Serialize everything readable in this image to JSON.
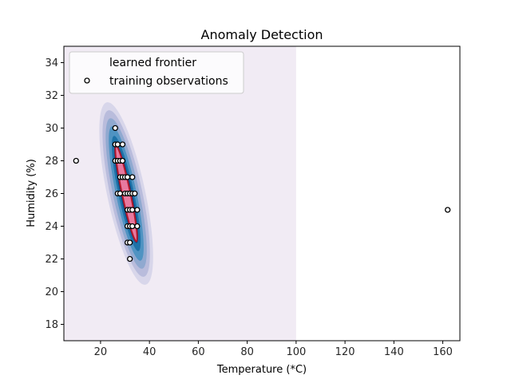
{
  "chart_data": {
    "type": "scatter",
    "title": "Anomaly Detection",
    "xlabel": "Temperature (*C)",
    "ylabel": "Humidity (%)",
    "xlim": [
      5,
      167
    ],
    "ylim": [
      17,
      35
    ],
    "xticks": [
      20,
      40,
      60,
      80,
      100,
      120,
      140,
      160
    ],
    "yticks": [
      18,
      20,
      22,
      24,
      26,
      28,
      30,
      32,
      34
    ],
    "shaded_region_x": [
      5,
      100
    ],
    "legend": {
      "placement": "top-left",
      "entries": [
        "learned frontier",
        "training observations"
      ]
    },
    "decision_function": {
      "center": [
        30.5,
        26
      ],
      "filled_levels": [
        {
          "rx": 7.8,
          "ry": 5.7,
          "color": "#d8d6ea"
        },
        {
          "rx": 6.6,
          "ry": 5.2,
          "color": "#b9bcdc"
        },
        {
          "rx": 5.4,
          "ry": 4.7,
          "color": "#90a9d0"
        },
        {
          "rx": 4.2,
          "ry": 4.2,
          "color": "#4f93c2"
        },
        {
          "rx": 3.2,
          "ry": 3.6,
          "color": "#1e72a8"
        },
        {
          "rx": 2.4,
          "ry": 3.1,
          "color": "#08457e"
        }
      ],
      "frontier": {
        "rx": 1.7,
        "ry": 3.0,
        "color": "#e8799f",
        "edge": "#b2182b"
      }
    },
    "series": [
      {
        "name": "training observations",
        "points": [
          [
            26,
            30
          ],
          [
            26,
            29
          ],
          [
            27,
            29
          ],
          [
            29,
            29
          ],
          [
            26,
            28
          ],
          [
            27,
            28
          ],
          [
            28,
            28
          ],
          [
            29,
            28
          ],
          [
            28,
            27
          ],
          [
            29,
            27
          ],
          [
            30,
            27
          ],
          [
            31,
            27
          ],
          [
            33,
            27
          ],
          [
            27,
            26
          ],
          [
            28,
            26
          ],
          [
            30,
            26
          ],
          [
            31,
            26
          ],
          [
            32,
            26
          ],
          [
            33,
            26
          ],
          [
            34,
            26
          ],
          [
            31,
            25
          ],
          [
            32,
            25
          ],
          [
            33,
            25
          ],
          [
            35,
            25
          ],
          [
            31,
            24
          ],
          [
            32,
            24
          ],
          [
            33,
            24
          ],
          [
            35,
            24
          ],
          [
            31,
            23
          ],
          [
            32,
            23
          ],
          [
            32,
            22
          ],
          [
            10,
            28
          ],
          [
            162,
            25
          ]
        ]
      }
    ]
  }
}
